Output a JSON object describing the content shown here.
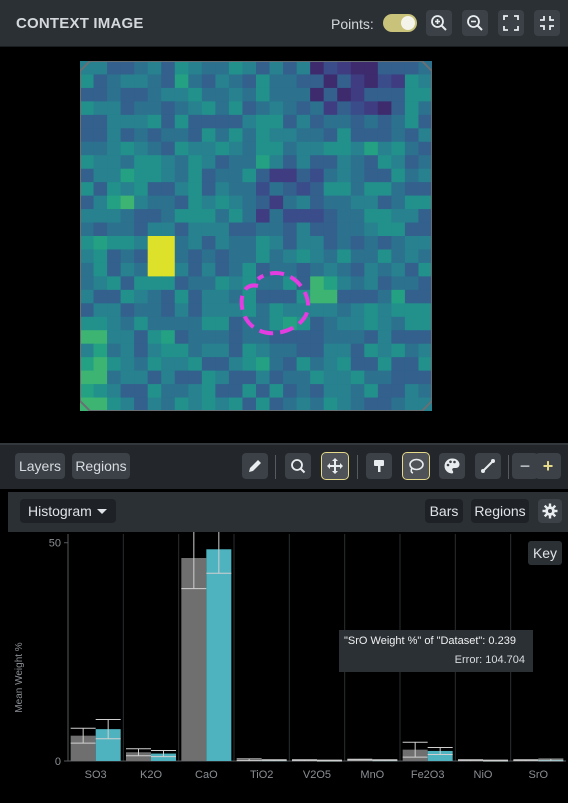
{
  "context": {
    "title": "CONTEXT IMAGE",
    "points_label": "Points:",
    "points_enabled": true,
    "buttons": [
      "zoom-in-icon",
      "zoom-out-icon",
      "fullscreen-icon",
      "collapse-icon"
    ]
  },
  "toolbar": {
    "layers_label": "Layers",
    "regions_label": "Regions",
    "tools": [
      "pencil-icon",
      "search-icon",
      "move-icon",
      "brush-icon",
      "lasso-icon",
      "palette-icon",
      "line-icon"
    ],
    "minus_label": "−",
    "plus_label": "+"
  },
  "histogram": {
    "dropdown_label": "Histogram",
    "bars_label": "Bars",
    "regions_label": "Regions",
    "key_label": "Key"
  },
  "tooltip": {
    "line1": "\"SrO Weight %\" of \"Dataset\": 0.239",
    "line2": "Error: 104.704"
  },
  "colors": {
    "series_gray": "#6f6f6f",
    "series_teal": "#4fb3bf",
    "accent": "#e5d98a",
    "region_magenta": "#e33ce0"
  },
  "chart_data": {
    "type": "bar",
    "ylabel": "Mean Weight %",
    "ylim": [
      0,
      52
    ],
    "yticks": [
      0,
      50
    ],
    "categories": [
      "SO3",
      "K2O",
      "CaO",
      "TiO2",
      "V2O5",
      "MnO",
      "Fe2O3",
      "NiO",
      "SrO"
    ],
    "series": [
      {
        "values": [
          5.8,
          2.0,
          46.5,
          0.3,
          0.2,
          0.3,
          2.6,
          0.2,
          0.2
        ],
        "error": [
          1.7,
          0.8,
          7.0,
          0.2,
          0.1,
          0.1,
          1.7,
          0.1,
          0.1
        ]
      },
      {
        "values": [
          7.3,
          1.7,
          48.5,
          0.2,
          0.1,
          0.2,
          2.3,
          0.1,
          0.239
        ],
        "error": [
          2.2,
          0.7,
          5.5,
          0.1,
          0.1,
          0.1,
          0.8,
          0.1,
          0.2
        ]
      }
    ]
  }
}
